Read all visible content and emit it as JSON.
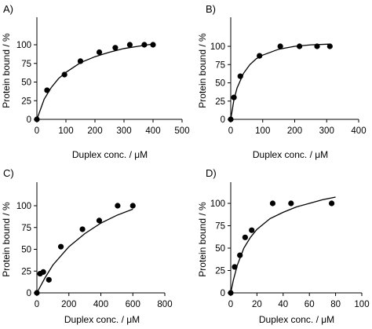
{
  "colors": {
    "axis": "#000000",
    "marker": "#000000",
    "curve": "#000000",
    "background": "#ffffff"
  },
  "chart_data": [
    {
      "panel": "A)",
      "type": "scatter",
      "xlabel": "Duplex conc. / μM",
      "ylabel": "Protein bound / %",
      "xlim": [
        0,
        500
      ],
      "ylim": [
        0,
        100
      ],
      "xticks": [
        0,
        100,
        200,
        300,
        400,
        500
      ],
      "yticks": [
        0,
        25,
        50,
        75,
        100
      ],
      "x": [
        0,
        35,
        95,
        150,
        215,
        270,
        320,
        370,
        400
      ],
      "y": [
        0,
        39,
        60,
        78,
        90,
        96,
        100,
        100,
        100
      ],
      "fit": {
        "type": "line",
        "x": [
          0,
          25,
          50,
          75,
          100,
          150,
          200,
          250,
          300,
          350,
          400
        ],
        "y": [
          0,
          27,
          43,
          55,
          63,
          76,
          84,
          90,
          95,
          98,
          101
        ]
      }
    },
    {
      "panel": "B)",
      "type": "scatter",
      "xlabel": "Duplex conc. / μM",
      "ylabel": "Protein bound / %",
      "xlim": [
        0,
        400
      ],
      "ylim": [
        0,
        100
      ],
      "xticks": [
        0,
        100,
        200,
        300,
        400
      ],
      "yticks": [
        0,
        25,
        50,
        75,
        100
      ],
      "x": [
        0,
        10,
        30,
        90,
        155,
        215,
        270,
        310
      ],
      "y": [
        0,
        30,
        59,
        87,
        100,
        100,
        100,
        100
      ],
      "fit": {
        "type": "line",
        "x": [
          0,
          10,
          20,
          40,
          60,
          80,
          100,
          150,
          200,
          250,
          310
        ],
        "y": [
          0,
          27,
          43,
          63,
          75,
          83,
          88,
          96,
          100,
          102,
          103
        ]
      }
    },
    {
      "panel": "C)",
      "type": "scatter",
      "xlabel": "Duplex conc. / μM",
      "ylabel": "Protein bound / %",
      "xlim": [
        0,
        800
      ],
      "ylim": [
        0,
        100
      ],
      "xticks": [
        0,
        200,
        400,
        600,
        800
      ],
      "yticks": [
        0,
        25,
        50,
        75,
        100
      ],
      "x": [
        0,
        20,
        40,
        75,
        150,
        285,
        390,
        505,
        600
      ],
      "y": [
        0,
        22,
        24,
        15,
        53,
        73,
        83,
        100,
        100
      ],
      "fit": {
        "type": "line",
        "x": [
          0,
          50,
          100,
          200,
          300,
          400,
          500,
          600
        ],
        "y": [
          0,
          17,
          32,
          53,
          68,
          80,
          89,
          96
        ]
      }
    },
    {
      "panel": "D)",
      "type": "scatter",
      "xlabel": "Duplex conc. / μM",
      "ylabel": "Protein bound / %",
      "xlim": [
        0,
        100
      ],
      "ylim": [
        0,
        100
      ],
      "xticks": [
        0,
        20,
        40,
        60,
        80,
        100
      ],
      "yticks": [
        0,
        25,
        50,
        75,
        100
      ],
      "x": [
        0,
        3,
        7,
        11,
        16,
        32,
        46,
        77
      ],
      "y": [
        0,
        29,
        42,
        62,
        70,
        100,
        100,
        100
      ],
      "fit": {
        "type": "line",
        "x": [
          0,
          2,
          5,
          10,
          15,
          20,
          30,
          40,
          50,
          60,
          70,
          80
        ],
        "y": [
          0,
          14,
          31,
          50,
          62,
          71,
          83,
          90,
          96,
          100,
          104,
          107
        ]
      }
    }
  ]
}
